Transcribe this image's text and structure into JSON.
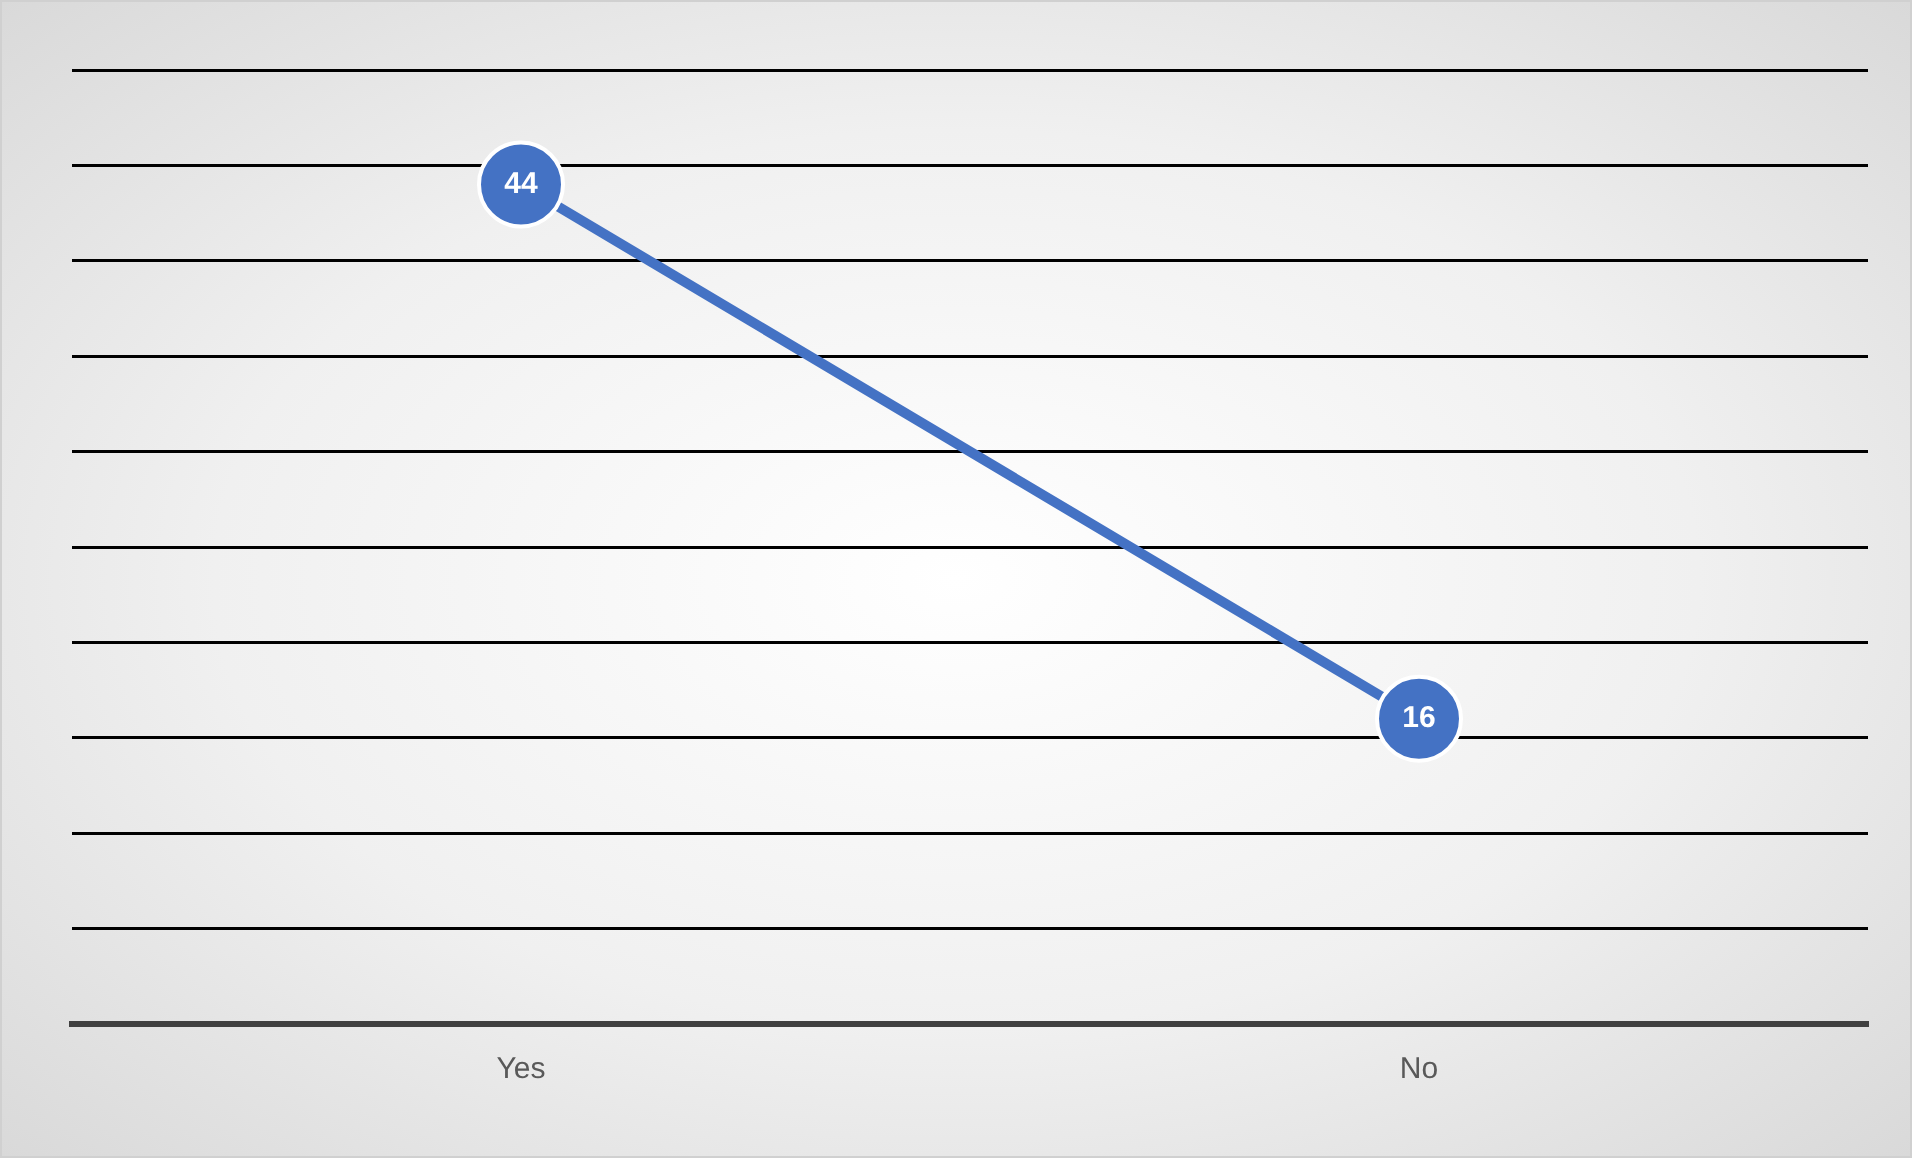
{
  "chart_data": {
    "type": "line",
    "categories": [
      "Yes",
      "No"
    ],
    "series": [
      {
        "color": "#4472c4",
        "values": [
          44,
          16
        ]
      }
    ],
    "ylim": [
      0,
      50
    ],
    "yticks": [
      {
        "value": 0,
        "label": null
      },
      {
        "value": 5,
        "label": null
      },
      {
        "value": 10,
        "label": null
      },
      {
        "value": 15,
        "label": null
      },
      {
        "value": 20,
        "label": null
      },
      {
        "value": 25,
        "label": null
      },
      {
        "value": 30,
        "label": null
      },
      {
        "value": 35,
        "label": null
      },
      {
        "value": 40,
        "label": null
      },
      {
        "value": 45,
        "label": null
      },
      {
        "value": 50,
        "label": null
      }
    ],
    "tick_labels": "x",
    "grid": "y",
    "legend": false,
    "marker": "circle",
    "line_style": "solid",
    "data_labels": true
  }
}
